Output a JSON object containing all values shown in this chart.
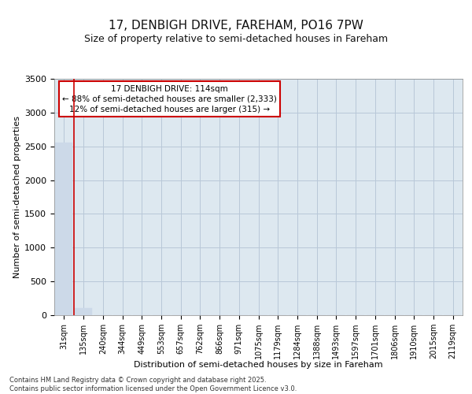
{
  "title_line1": "17, DENBIGH DRIVE, FAREHAM, PO16 7PW",
  "title_line2": "Size of property relative to semi-detached houses in Fareham",
  "xlabel": "Distribution of semi-detached houses by size in Fareham",
  "ylabel": "Number of semi-detached properties",
  "footer_line1": "Contains HM Land Registry data © Crown copyright and database right 2025.",
  "footer_line2": "Contains public sector information licensed under the Open Government Licence v3.0.",
  "annotation_title": "17 DENBIGH DRIVE: 114sqm",
  "annotation_line2": "← 88% of semi-detached houses are smaller (2,333)",
  "annotation_line3": "12% of semi-detached houses are larger (315) →",
  "categories": [
    "31sqm",
    "135sqm",
    "240sqm",
    "344sqm",
    "449sqm",
    "553sqm",
    "657sqm",
    "762sqm",
    "866sqm",
    "971sqm",
    "1075sqm",
    "1179sqm",
    "1284sqm",
    "1388sqm",
    "1493sqm",
    "1597sqm",
    "1701sqm",
    "1806sqm",
    "1910sqm",
    "2015sqm",
    "2119sqm"
  ],
  "values": [
    2550,
    110,
    4,
    2,
    1,
    0,
    0,
    0,
    0,
    0,
    0,
    0,
    0,
    0,
    0,
    0,
    0,
    0,
    0,
    0,
    0
  ],
  "bar_color": "#ccd9e8",
  "red_line_color": "#cc0000",
  "grid_color": "#b8c8d8",
  "plot_bg_color": "#dde8f0",
  "figure_bg_color": "#ffffff",
  "annotation_box_facecolor": "#ffffff",
  "annotation_box_edgecolor": "#cc0000",
  "ylim": [
    0,
    3500
  ],
  "yticks": [
    0,
    500,
    1000,
    1500,
    2000,
    2500,
    3000,
    3500
  ],
  "red_line_x": 0.5,
  "title1_fontsize": 11,
  "title2_fontsize": 9,
  "ylabel_fontsize": 8,
  "xlabel_fontsize": 8,
  "ytick_fontsize": 8,
  "xtick_fontsize": 7,
  "annotation_fontsize": 7.5,
  "footer_fontsize": 6
}
